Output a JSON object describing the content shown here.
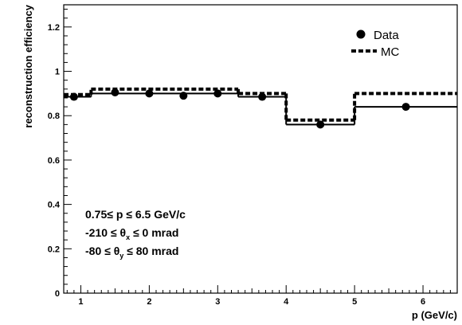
{
  "chart_data": {
    "type": "scatter",
    "xlabel": "p (GeV/c)",
    "ylabel": "reconstruction efficiency",
    "xlim": [
      0.75,
      6.5
    ],
    "ylim": [
      0,
      1.3
    ],
    "x_ticks": [
      "1",
      "2",
      "3",
      "4",
      "5",
      "6"
    ],
    "y_ticks": [
      "0",
      "0.2",
      "0.4",
      "0.6",
      "0.8",
      "1",
      "1.2"
    ],
    "grid": false,
    "legend_position": "top-right",
    "legend": [
      {
        "label": "Data",
        "style": "marker"
      },
      {
        "label": "MC",
        "style": "dashed-step"
      }
    ],
    "series": [
      {
        "name": "Data",
        "marker": "filled-circle",
        "color": "#000000",
        "points": [
          {
            "x": 0.9,
            "y": 0.885
          },
          {
            "x": 1.5,
            "y": 0.905
          },
          {
            "x": 2.0,
            "y": 0.9
          },
          {
            "x": 2.5,
            "y": 0.89
          },
          {
            "x": 3.0,
            "y": 0.9
          },
          {
            "x": 3.65,
            "y": 0.885
          },
          {
            "x": 4.5,
            "y": 0.76
          },
          {
            "x": 5.75,
            "y": 0.84
          }
        ],
        "bins": [
          {
            "x0": 0.75,
            "x1": 1.15,
            "y": 0.885
          },
          {
            "x0": 1.15,
            "x1": 3.3,
            "y": 0.9
          },
          {
            "x0": 3.3,
            "x1": 4.0,
            "y": 0.885
          },
          {
            "x0": 4.0,
            "x1": 5.0,
            "y": 0.76
          },
          {
            "x0": 5.0,
            "x1": 6.5,
            "y": 0.84
          }
        ]
      },
      {
        "name": "MC",
        "style": "dashed-step",
        "color": "#000000",
        "bins": [
          {
            "x0": 0.75,
            "x1": 1.15,
            "y": 0.895
          },
          {
            "x0": 1.15,
            "x1": 3.3,
            "y": 0.92
          },
          {
            "x0": 3.3,
            "x1": 4.0,
            "y": 0.9
          },
          {
            "x0": 4.0,
            "x1": 5.0,
            "y": 0.78
          },
          {
            "x0": 5.0,
            "x1": 6.5,
            "y": 0.9
          }
        ]
      }
    ],
    "annotations": [
      {
        "parts": [
          [
            "0.75≤  p  ≤ 6.5 GeV/c",
            ""
          ]
        ]
      },
      {
        "parts": [
          [
            "-210 ≤  θ",
            ""
          ],
          [
            "x",
            "sub"
          ],
          [
            "  ≤ 0 mrad",
            ""
          ]
        ]
      },
      {
        "parts": [
          [
            "-80  ≤  θ",
            ""
          ],
          [
            "y",
            "sub"
          ],
          [
            "  ≤ 80 mrad",
            ""
          ]
        ]
      }
    ]
  }
}
